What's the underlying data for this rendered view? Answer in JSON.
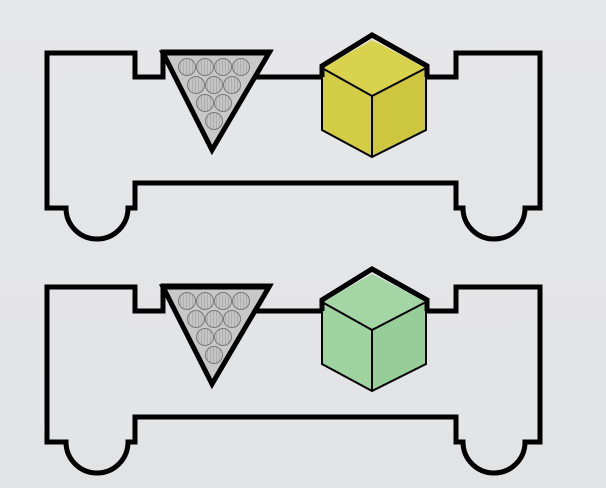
{
  "diagram": {
    "background_color": "#e4e5e7",
    "outline_color": "#000000",
    "carts": [
      {
        "name": "top-cart",
        "cube_color": "#d3cc45",
        "cube_top_color": "#d8d24c",
        "cube_side_color": "#cdc63f",
        "cone_fill": "#c8c8c8",
        "cone_icon": "ball-cluster-icon",
        "cube_icon": "cube-icon"
      },
      {
        "name": "bottom-cart",
        "cube_color": "#9fd3a0",
        "cube_top_color": "#a3d6a4",
        "cube_side_color": "#97cd98",
        "cone_fill": "#c8c8c8",
        "cone_icon": "ball-cluster-icon",
        "cube_icon": "cube-icon"
      }
    ]
  }
}
